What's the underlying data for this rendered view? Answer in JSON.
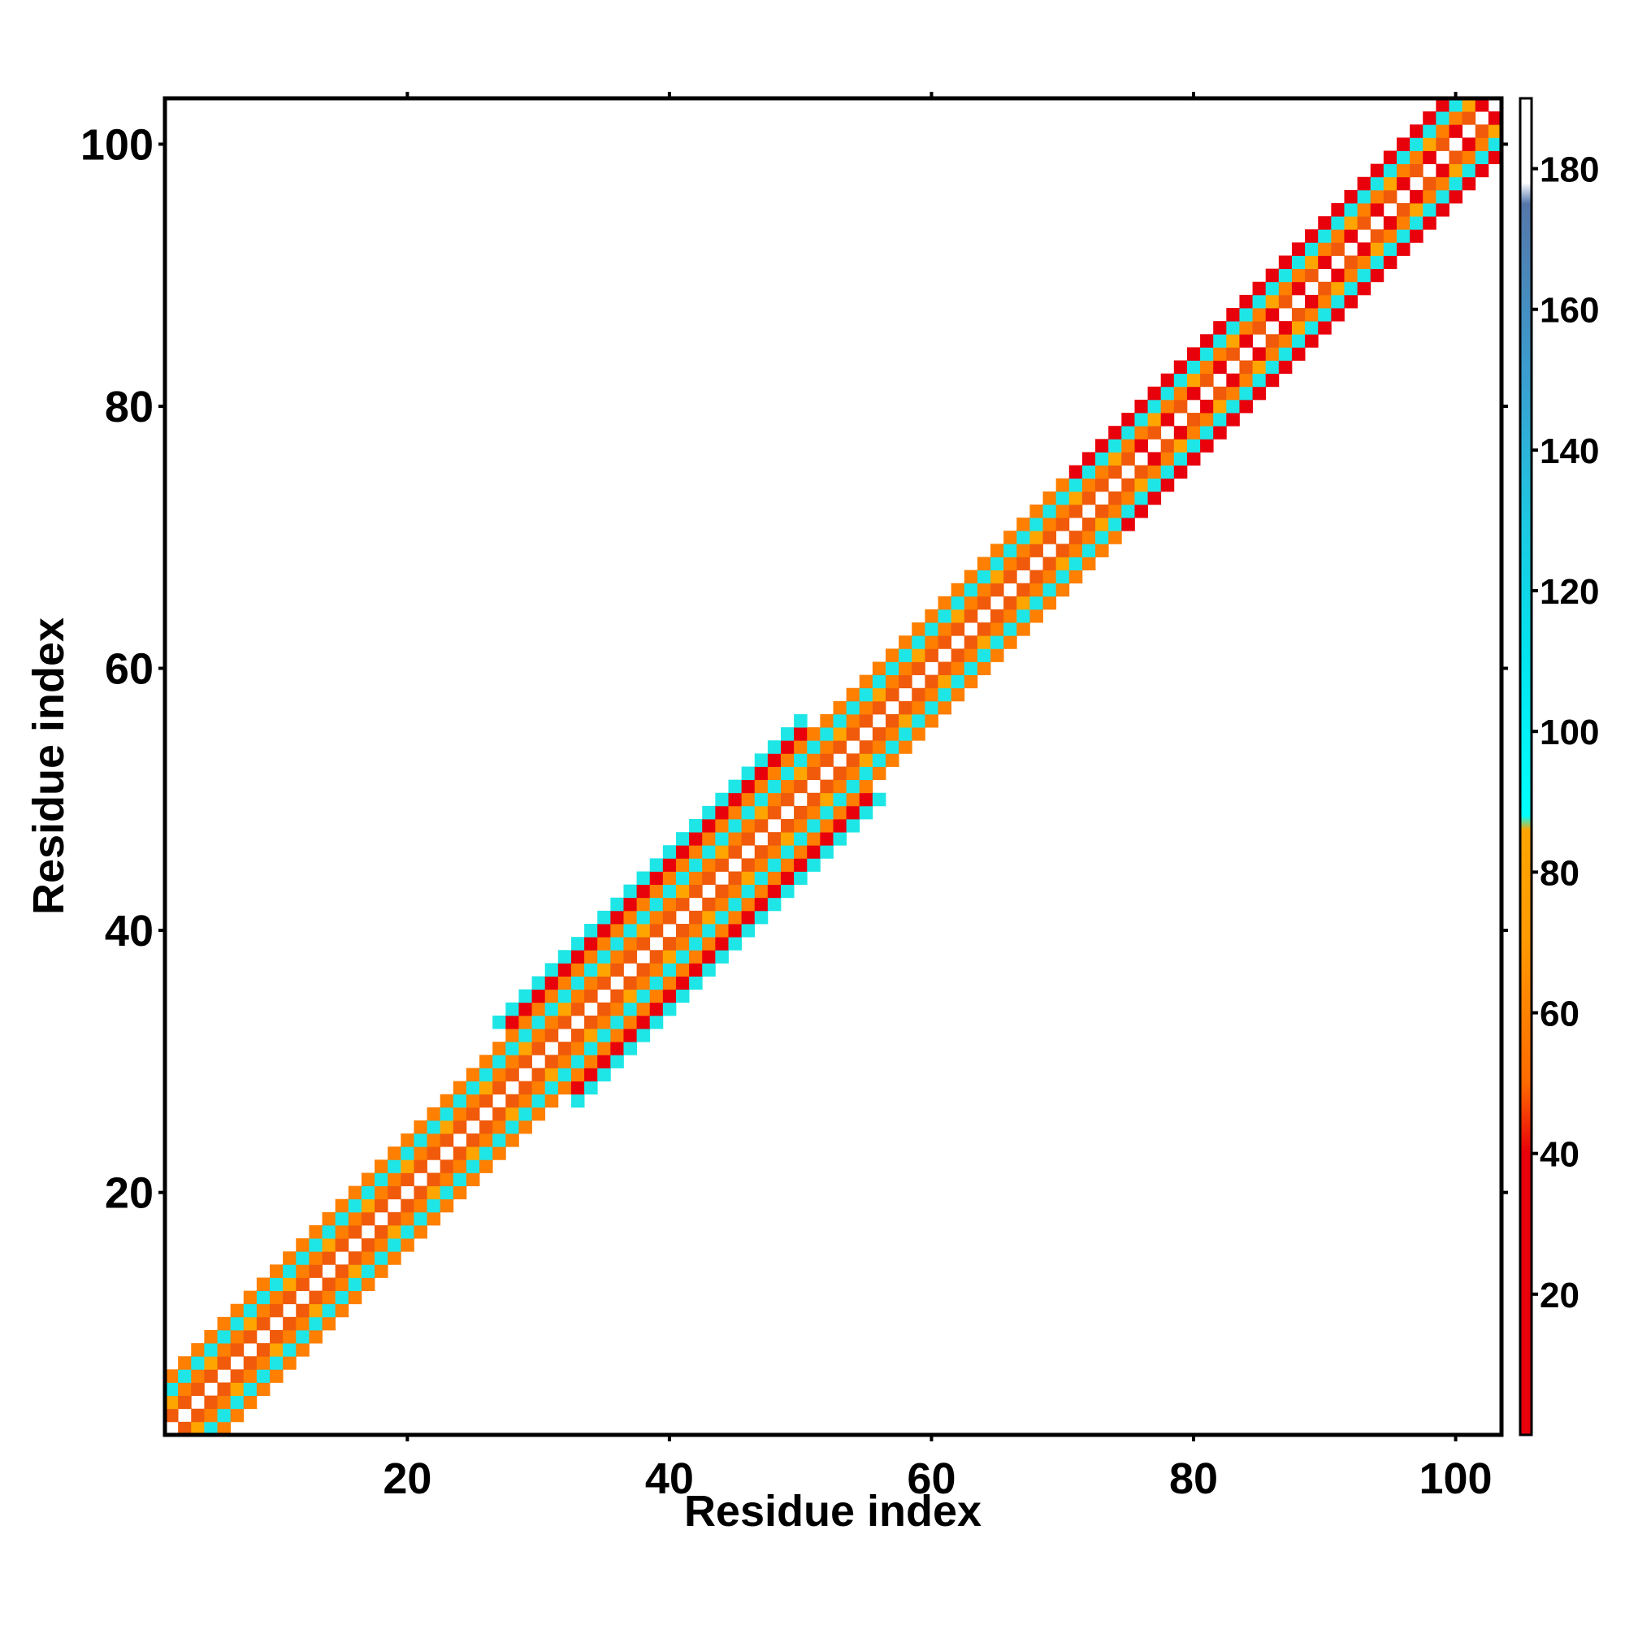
{
  "chart_data": {
    "type": "heatmap",
    "title": "",
    "xlabel": "Residue index",
    "ylabel": "Residue index",
    "xlim": [
      1.5,
      103.5
    ],
    "ylim": [
      1.5,
      103.5
    ],
    "x_ticks": [
      20,
      40,
      60,
      80,
      100
    ],
    "y_ticks": [
      20,
      40,
      60,
      80,
      100
    ],
    "grid": false,
    "pattern": "symmetric band along the diagonal; cells with |i-j| of 1-4 are colored (checkerboard), wider band (|i-j| up to 6) around residues 30-53; diagonal cells empty",
    "colorbar": {
      "range": [
        0,
        190
      ],
      "ticks": [
        20,
        40,
        60,
        80,
        100,
        120,
        140,
        160,
        180
      ],
      "stops": [
        {
          "value": 0,
          "color": "#e8000b"
        },
        {
          "value": 40,
          "color": "#e8000b"
        },
        {
          "value": 50,
          "color": "#ff6a00"
        },
        {
          "value": 70,
          "color": "#ff9900"
        },
        {
          "value": 86,
          "color": "#ffa500"
        },
        {
          "value": 88,
          "color": "#00ffff"
        },
        {
          "value": 110,
          "color": "#00e5ee"
        },
        {
          "value": 130,
          "color": "#1ec8e0"
        },
        {
          "value": 150,
          "color": "#3a9fd0"
        },
        {
          "value": 175,
          "color": "#5577aa"
        },
        {
          "value": 178,
          "color": "#ffffff"
        },
        {
          "value": 190,
          "color": "#ffffff"
        }
      ]
    },
    "colors": {
      "red": "#e8000b",
      "dark_orange": "#f05a0a",
      "orange": "#ff7f00",
      "light_orange": "#ffa500",
      "cyan": "#1ee6e6"
    }
  }
}
